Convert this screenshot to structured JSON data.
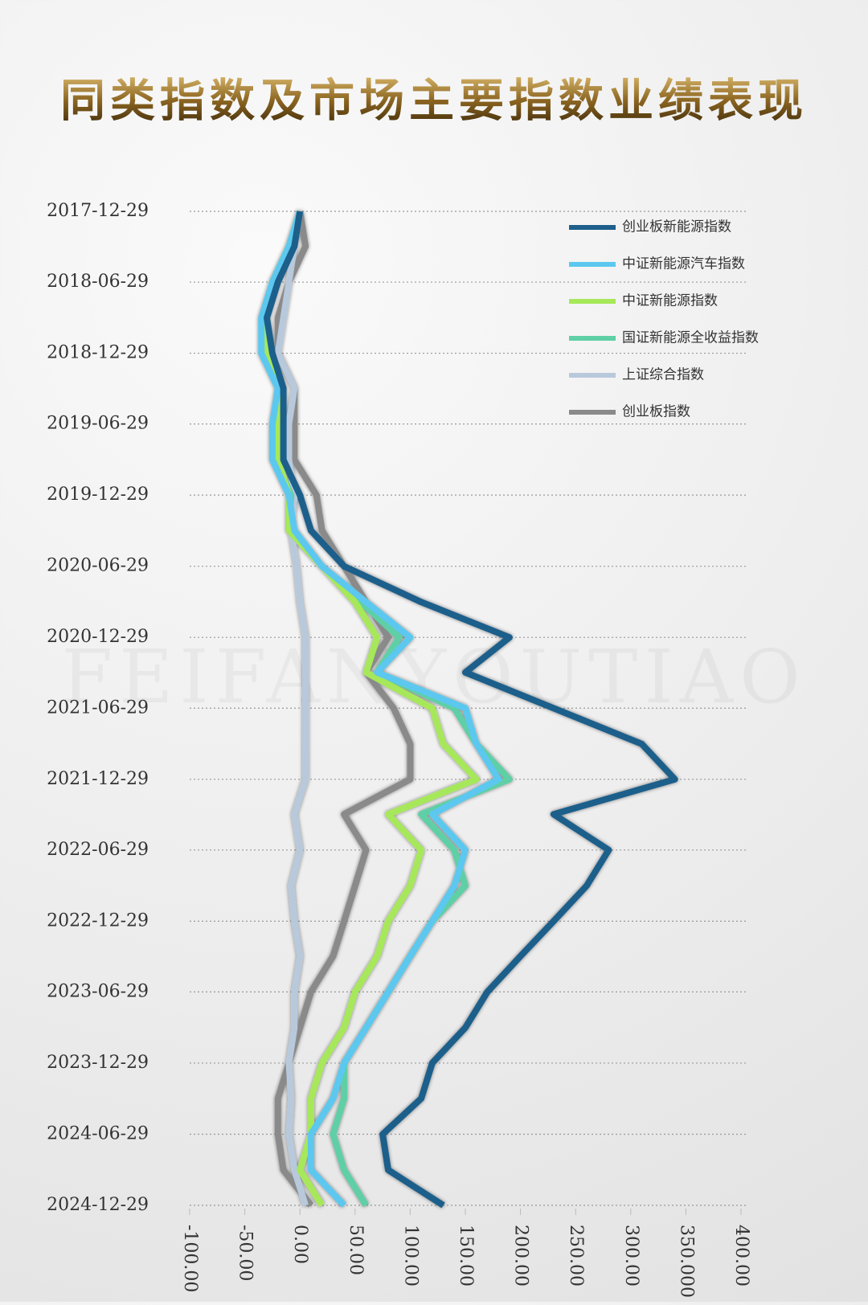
{
  "chart_data": {
    "type": "line",
    "orientation": "horizontal-values",
    "title": "同类指数及市场主要指数业绩表现",
    "watermark": "FEIFANYOUTIAO",
    "x": [
      "2017-12-29",
      "2018-03-29",
      "2018-06-29",
      "2018-09-29",
      "2018-12-29",
      "2019-03-29",
      "2019-06-29",
      "2019-09-29",
      "2019-12-29",
      "2020-03-29",
      "2020-06-29",
      "2020-09-29",
      "2020-12-29",
      "2021-03-29",
      "2021-06-29",
      "2021-09-29",
      "2021-12-29",
      "2022-03-29",
      "2022-06-29",
      "2022-09-29",
      "2022-12-29",
      "2023-03-29",
      "2023-06-29",
      "2023-09-29",
      "2023-12-29",
      "2024-03-29",
      "2024-06-29",
      "2024-09-29",
      "2024-12-29"
    ],
    "series": [
      {
        "name": "创业板新能源指数",
        "color": "#1f5f8b",
        "values": [
          0,
          -5,
          -20,
          -30,
          -25,
          -15,
          -15,
          -15,
          0,
          10,
          40,
          110,
          190,
          150,
          230,
          310,
          340,
          230,
          280,
          260,
          230,
          200,
          170,
          150,
          120,
          110,
          75,
          80,
          130
        ]
      },
      {
        "name": "中证新能源汽车指数",
        "color": "#5bc8ef",
        "values": [
          0,
          -10,
          -25,
          -35,
          -35,
          -20,
          -25,
          -25,
          -10,
          -5,
          20,
          60,
          100,
          70,
          150,
          160,
          180,
          120,
          150,
          140,
          120,
          100,
          80,
          60,
          40,
          30,
          10,
          10,
          40
        ]
      },
      {
        "name": "中证新能源指数",
        "color": "#a6e85a",
        "values": [
          0,
          -10,
          -25,
          -30,
          -30,
          -20,
          -20,
          -20,
          -10,
          -10,
          20,
          50,
          70,
          60,
          120,
          130,
          160,
          80,
          110,
          100,
          80,
          70,
          50,
          40,
          20,
          10,
          10,
          0,
          20
        ]
      },
      {
        "name": "国证新能源全收益指数",
        "color": "#5fcfa6",
        "values": [
          0,
          -10,
          -25,
          -32,
          -32,
          -20,
          -22,
          -22,
          -8,
          -10,
          20,
          55,
          90,
          70,
          140,
          160,
          190,
          110,
          140,
          150,
          120,
          100,
          80,
          60,
          40,
          40,
          30,
          40,
          60
        ]
      },
      {
        "name": "上证综合指数",
        "color": "#b8c9dc",
        "values": [
          0,
          -5,
          -10,
          -15,
          -20,
          -5,
          -10,
          -10,
          -5,
          -8,
          -3,
          0,
          5,
          5,
          5,
          5,
          5,
          -5,
          0,
          -8,
          -5,
          0,
          -5,
          -5,
          -10,
          -8,
          -10,
          -5,
          5
        ]
      },
      {
        "name": "创业板指数",
        "color": "#8a8a8a",
        "values": [
          0,
          5,
          -10,
          -20,
          -20,
          -5,
          -5,
          -5,
          15,
          20,
          40,
          60,
          80,
          60,
          85,
          100,
          100,
          40,
          60,
          50,
          40,
          30,
          10,
          0,
          -10,
          -20,
          -20,
          -15,
          10
        ]
      }
    ],
    "ylim": [
      "2017-12-29",
      "2024-12-29"
    ],
    "yticks": [
      "2017-12-29",
      "2018-06-29",
      "2018-12-29",
      "2019-06-29",
      "2019-12-29",
      "2020-06-29",
      "2020-12-29",
      "2021-06-29",
      "2021-12-29",
      "2022-06-29",
      "2022-12-29",
      "2023-06-29",
      "2023-12-29",
      "2024-06-29",
      "2024-12-29"
    ],
    "xlim": [
      -100,
      400
    ],
    "xticks": [
      {
        "value": -100,
        "label": "-100.00"
      },
      {
        "value": -50,
        "label": "-50.00"
      },
      {
        "value": 0,
        "label": "0.00"
      },
      {
        "value": 50,
        "label": "50.00"
      },
      {
        "value": 100,
        "label": "100.00"
      },
      {
        "value": 150,
        "label": "150.00"
      },
      {
        "value": 200,
        "label": "200.00"
      },
      {
        "value": 250,
        "label": "250.00"
      },
      {
        "value": 300,
        "label": "300.00"
      },
      {
        "value": 350,
        "label": "350.000"
      },
      {
        "value": 400,
        "label": "400.00"
      }
    ],
    "grid": true,
    "legend": "upper right"
  }
}
